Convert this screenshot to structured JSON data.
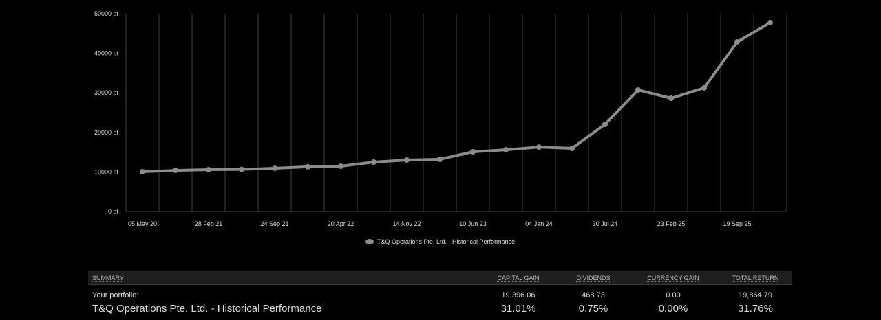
{
  "chart_data": {
    "type": "line",
    "title": "",
    "xlabel": "",
    "ylabel": "",
    "ylim": [
      0,
      50000
    ],
    "y_ticks": [
      "0 pt",
      "10000 pt",
      "20000 pt",
      "30000 pt",
      "40000 pt",
      "50000 pt"
    ],
    "y_tick_values": [
      0,
      10000,
      20000,
      30000,
      40000,
      50000
    ],
    "x_tick_labels": [
      "05 May 20",
      "28 Feb 21",
      "24 Sep 21",
      "20 Apr 22",
      "14 Nov 22",
      "10 Jun 23",
      "04 Jan 24",
      "30 Jul 24",
      "23 Feb 25",
      "19 Sep 25"
    ],
    "x_tick_point_index": [
      0,
      2,
      4,
      6,
      8,
      10,
      12,
      14,
      16,
      18
    ],
    "grid": "vertical",
    "legend_position": "bottom-center",
    "series": [
      {
        "name": "T&Q Operations Pte. Ltd. - Historical Performance",
        "color": "#8c8c8c",
        "values": [
          10070,
          10400,
          10590,
          10650,
          10940,
          11300,
          11460,
          12500,
          13020,
          13200,
          15100,
          15600,
          16300,
          15970,
          22050,
          30730,
          28650,
          31250,
          42880,
          47740
        ]
      }
    ]
  },
  "colors": {
    "grid": "#4a3b2c",
    "line": "#8c8c8c",
    "header_bg": "#1f1f1f"
  },
  "summary": {
    "headers": [
      "SUMMARY",
      "CAPITAL GAIN",
      "DIVIDENDS",
      "CURRENCY GAIN",
      "TOTAL RETURN"
    ],
    "row1": {
      "label": "Your portfolio:",
      "capital_gain": "19,396.06",
      "dividends": "468.73",
      "currency_gain": "0.00",
      "total_return": "19,864.79"
    },
    "row2": {
      "label": "T&Q Operations Pte. Ltd. - Historical Performance",
      "capital_gain": "31.01%",
      "dividends": "0.75%",
      "currency_gain": "0.00%",
      "total_return": "31.76%"
    }
  }
}
